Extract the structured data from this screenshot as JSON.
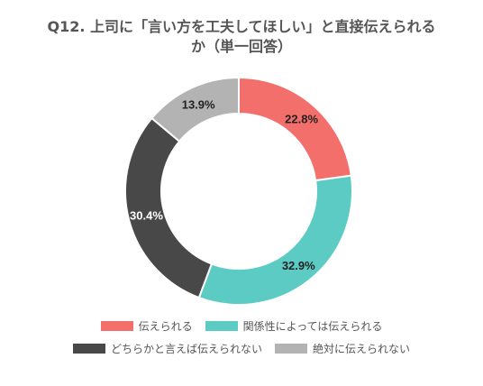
{
  "chart_data": {
    "type": "pie",
    "variant": "donut",
    "title": [
      "Q12. 上司に「言い方を工夫してほしい」と直接伝えられる",
      "か（単一回答）"
    ],
    "categories": [
      "伝えられる",
      "関係性によっては伝えられる",
      "どちらかと言えば伝えられない",
      "絶対に伝えられない"
    ],
    "values": [
      22.8,
      32.9,
      30.4,
      13.9
    ],
    "value_labels": [
      "22.8%",
      "32.9%",
      "30.4%",
      "13.9%"
    ],
    "colors": [
      "#f26f6b",
      "#5ccbc4",
      "#484848",
      "#b3b3b3"
    ],
    "label_colors": [
      "#222222",
      "#222222",
      "#ffffff",
      "#222222"
    ],
    "legend_position": "bottom",
    "legend_rows": [
      [
        0,
        1
      ],
      [
        2,
        3
      ]
    ]
  }
}
